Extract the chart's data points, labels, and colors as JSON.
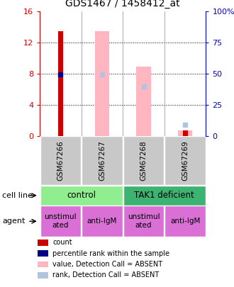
{
  "title": "GDS1467 / 1458412_at",
  "samples": [
    "GSM67266",
    "GSM67267",
    "GSM67268",
    "GSM67269"
  ],
  "ylim_left": [
    0,
    16
  ],
  "ylim_right": [
    0,
    100
  ],
  "yticks_left": [
    0,
    4,
    8,
    12,
    16
  ],
  "yticks_right": [
    0,
    25,
    50,
    75,
    100
  ],
  "ytick_labels_right": [
    "0",
    "25",
    "50",
    "75",
    "100%"
  ],
  "red_bars": [
    13.5,
    0,
    0,
    0.8
  ],
  "blue_dots": [
    7.9,
    0,
    0,
    0
  ],
  "pink_bars": [
    0,
    13.5,
    8.9,
    0.8
  ],
  "lavender_dots": [
    0,
    7.9,
    6.4,
    1.5
  ],
  "cell_line_color_light": "#90EE90",
  "cell_line_color_dark": "#3CB371",
  "agent_color": "#DA70D6",
  "agent_unstim_color": "#DA70D6",
  "sample_box_color": "#C8C8C8",
  "left_axis_color": "#CC0000",
  "right_axis_color": "#0000CC",
  "legend_items": [
    {
      "color": "#CC0000",
      "label": "count"
    },
    {
      "color": "#00008B",
      "label": "percentile rank within the sample"
    },
    {
      "color": "#FFB6C1",
      "label": "value, Detection Call = ABSENT"
    },
    {
      "color": "#B0C4DE",
      "label": "rank, Detection Call = ABSENT"
    }
  ]
}
